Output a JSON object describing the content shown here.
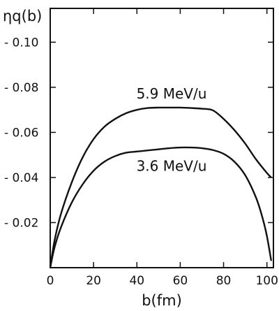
{
  "chart_data": {
    "type": "line",
    "title": "",
    "xlabel": "b(fm)",
    "ylabel": "ηq(b)",
    "xlim": [
      0,
      103
    ],
    "ylim": [
      0,
      0.115
    ],
    "x_ticks": [
      0,
      20,
      40,
      60,
      80,
      100
    ],
    "x_tick_labels": [
      "0",
      "20",
      "40",
      "60",
      "80",
      "100"
    ],
    "y_ticks": [
      0.02,
      0.04,
      0.06,
      0.08,
      0.1
    ],
    "y_tick_labels": [
      "- 0.02",
      "- 0.04",
      "- 0.06",
      "- 0.08",
      "- 0.10"
    ],
    "grid": false,
    "legend": "none",
    "series": [
      {
        "name": "5.9 MeV/u",
        "color": "#111111",
        "x": [
          0,
          2,
          5,
          10,
          15,
          20,
          25,
          30,
          35,
          40,
          45,
          50,
          55,
          60,
          65,
          70,
          75,
          80,
          85,
          90,
          95,
          100,
          102
        ],
        "y": [
          0.0,
          0.012,
          0.024,
          0.038,
          0.049,
          0.057,
          0.0625,
          0.066,
          0.0685,
          0.07,
          0.0708,
          0.071,
          0.071,
          0.071,
          0.0708,
          0.0705,
          0.0698,
          0.066,
          0.061,
          0.055,
          0.048,
          0.042,
          0.04
        ]
      },
      {
        "name": "3.6 MeV/u",
        "color": "#111111",
        "x": [
          0,
          2,
          5,
          10,
          15,
          20,
          25,
          30,
          35,
          40,
          45,
          50,
          55,
          60,
          65,
          70,
          75,
          80,
          85,
          90,
          95,
          98,
          100,
          102
        ],
        "y": [
          0.0,
          0.009,
          0.018,
          0.029,
          0.037,
          0.043,
          0.047,
          0.0495,
          0.051,
          0.0515,
          0.052,
          0.0525,
          0.053,
          0.0533,
          0.0533,
          0.053,
          0.0522,
          0.0505,
          0.047,
          0.041,
          0.031,
          0.022,
          0.014,
          0.003
        ]
      }
    ],
    "annotations": [
      {
        "text": "5.9 MeV/u",
        "x": 56,
        "y": 0.075
      },
      {
        "text": "3.6 MeV/u",
        "x": 56,
        "y": 0.043
      }
    ]
  }
}
